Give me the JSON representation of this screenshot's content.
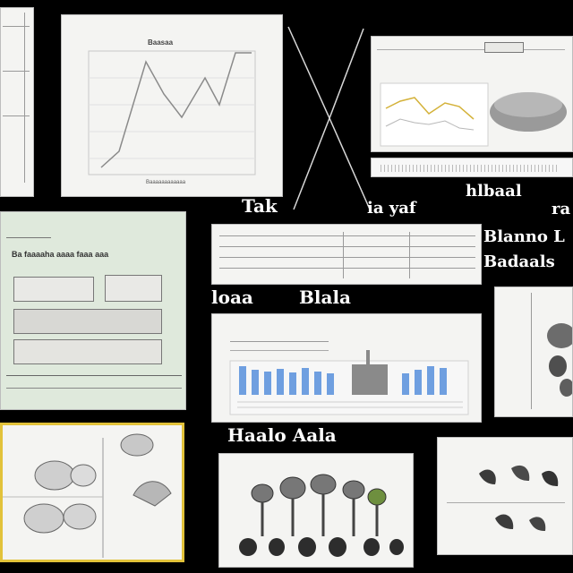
{
  "labels": {
    "top_left_caption": "Tak",
    "top_mid_caption": "ia yaf",
    "top_right_caption_1": "hlbaal",
    "top_right_caption_2": "ra",
    "right_mid_caption_1": "Blanno L",
    "right_mid_caption_2": "Badaals",
    "mid_left_caption": "loaa",
    "mid_center_caption": "Blala",
    "bottom_center_caption": "Haalo Aala"
  },
  "line_chart_panel": {
    "title": "Baasaa",
    "footer": "Baaaaaaaaaaaa"
  },
  "left_green_panel": {
    "heading": "Ba faaaaha aaaa faaa aaa"
  },
  "colors": {
    "background": "#000000",
    "panel": "#f4f4f2",
    "green_panel": "#dfe9dc",
    "yellow_border": "#e2c23a",
    "bar_blue": "#6f9fe0",
    "line_yellow": "#d4b23a",
    "line_gray": "#8a8a8a"
  }
}
